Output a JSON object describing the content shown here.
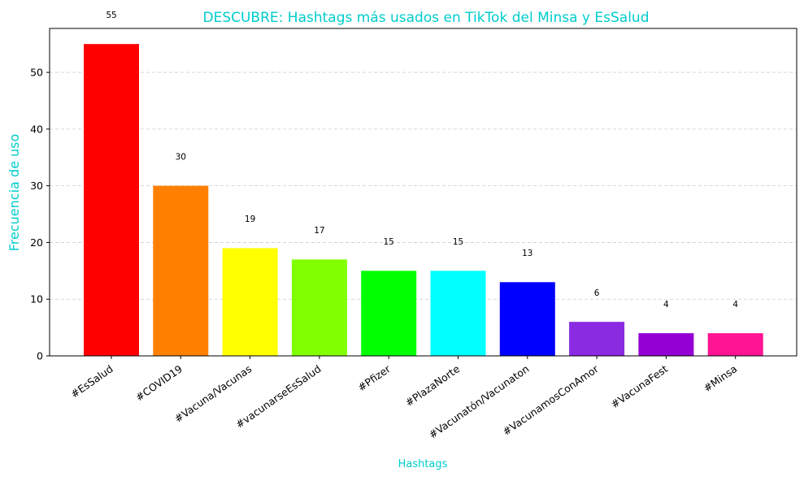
{
  "chart_data": {
    "type": "bar",
    "title": "DESCUBRE: Hashtags más usados en TikTok del Minsa y EsSalud",
    "xlabel": "Hashtags",
    "ylabel": "Frecuencia de uso",
    "categories": [
      "#EsSalud",
      "#COVID19",
      "#Vacuna/Vacunas",
      "#vacunarseEsSalud",
      "#Pfizer",
      "#PlazaNorte",
      "#Vacunatón/Vacunaton",
      "#VacunamosConAmor",
      "#VacunaFest",
      "#Minsa"
    ],
    "values": [
      55,
      30,
      19,
      17,
      15,
      15,
      13,
      6,
      4,
      4
    ],
    "data_labels": [
      "55",
      "30",
      "19",
      "17",
      "15",
      "15",
      "13",
      "6",
      "4",
      "4"
    ],
    "bar_colors": [
      "#ff0000",
      "#ff8000",
      "#ffff00",
      "#80ff00",
      "#00ff00",
      "#00ffff",
      "#0000ff",
      "#8a2be2",
      "#9400d3",
      "#ff1493"
    ],
    "ylim": [
      0,
      57.75
    ],
    "yticks": [
      0,
      10,
      20,
      30,
      40,
      50
    ],
    "ytick_labels": [
      "0",
      "10",
      "20",
      "30",
      "40",
      "50"
    ],
    "grid": "y-dashed",
    "title_color": "#00cccc",
    "label_color": "#00cccc"
  }
}
